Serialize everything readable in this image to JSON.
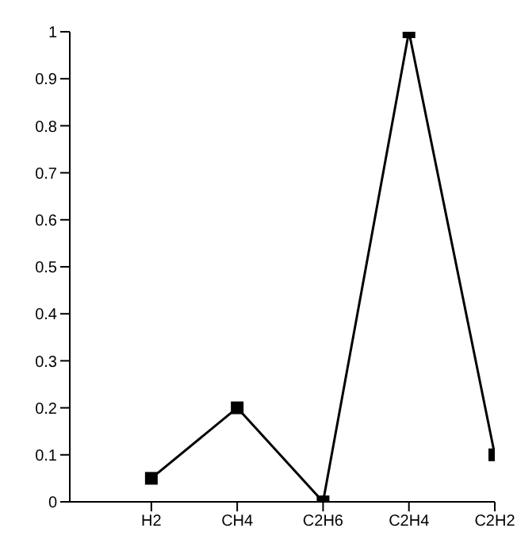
{
  "chart_data": {
    "type": "line",
    "categories": [
      "H2",
      "CH4",
      "C2H6",
      "C2H4",
      "C2H2"
    ],
    "series": [
      {
        "color": "#000000",
        "values": [
          0.05,
          0.2,
          0,
          1,
          0.1
        ]
      }
    ],
    "ylim": [
      0,
      1
    ],
    "yticks": [
      0,
      0.1,
      0.2,
      0.3,
      0.4,
      0.5,
      0.6,
      0.7,
      0.8,
      0.9,
      1
    ],
    "grid": false,
    "legend": false,
    "marker": "square",
    "line_style": "solid"
  }
}
